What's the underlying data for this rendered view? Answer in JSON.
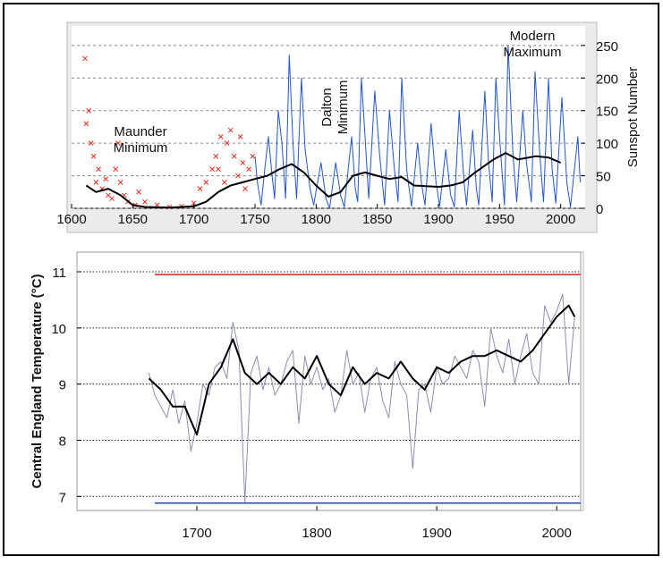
{
  "chart_data": [
    {
      "type": "line",
      "ylabel": "Sunspot Number",
      "y_axis_side": "right",
      "grid": true,
      "grid_style": "dashed",
      "background": "#ebebeb",
      "xlim": [
        1600,
        2020
      ],
      "xticks": [
        1600,
        1650,
        1700,
        1750,
        1800,
        1850,
        1900,
        1950,
        2000
      ],
      "ylim": [
        0,
        280
      ],
      "yticks": [
        0,
        50,
        100,
        150,
        200,
        250
      ],
      "annotations": [
        {
          "lines": [
            "Maunder",
            "Minimum"
          ],
          "rotated": false
        },
        {
          "lines": [
            "Dalton",
            "Minimum"
          ],
          "rotated": true
        },
        {
          "lines": [
            "Modern",
            "Maximum"
          ],
          "rotated": false
        }
      ],
      "series": [
        {
          "style": "scatter",
          "marker": "x",
          "color": "#e03020",
          "x": [
            1611,
            1612,
            1614,
            1616,
            1618,
            1620,
            1622,
            1625,
            1628,
            1630,
            1633,
            1636,
            1638,
            1640,
            1643,
            1646,
            1652,
            1655,
            1660,
            1670,
            1680,
            1690,
            1700,
            1705,
            1710,
            1715,
            1718,
            1720,
            1722,
            1725,
            1727,
            1730,
            1733,
            1736,
            1738,
            1740,
            1742,
            1745,
            1748
          ],
          "values": [
            230,
            130,
            150,
            100,
            80,
            40,
            60,
            30,
            45,
            20,
            15,
            60,
            100,
            40,
            20,
            10,
            5,
            25,
            10,
            5,
            2,
            3,
            8,
            30,
            40,
            60,
            80,
            60,
            110,
            40,
            100,
            120,
            80,
            50,
            110,
            70,
            30,
            60,
            80
          ]
        },
        {
          "style": "line",
          "color": "#2255cc",
          "width": 1,
          "x": [
            1750,
            1752,
            1755,
            1758,
            1761,
            1764,
            1766,
            1769,
            1772,
            1775,
            1778,
            1781,
            1784,
            1788,
            1791,
            1795,
            1798,
            1804,
            1808,
            1811,
            1816,
            1820,
            1823,
            1829,
            1832,
            1834,
            1837,
            1840,
            1843,
            1848,
            1852,
            1856,
            1860,
            1864,
            1867,
            1870,
            1874,
            1878,
            1883,
            1886,
            1889,
            1894,
            1898,
            1901,
            1906,
            1910,
            1913,
            1917,
            1921,
            1923,
            1928,
            1931,
            1933,
            1938,
            1941,
            1944,
            1947,
            1950,
            1954,
            1957,
            1961,
            1964,
            1969,
            1972,
            1976,
            1979,
            1983,
            1986,
            1990,
            1993,
            1996,
            2001,
            2005,
            2008,
            2014,
            2016
          ],
          "values": [
            80,
            40,
            5,
            60,
            110,
            50,
            15,
            150,
            100,
            15,
            235,
            100,
            15,
            200,
            90,
            30,
            5,
            70,
            15,
            0,
            70,
            20,
            2,
            110,
            30,
            10,
            200,
            110,
            15,
            180,
            80,
            5,
            150,
            60,
            10,
            200,
            60,
            3,
            100,
            40,
            5,
            130,
            40,
            3,
            90,
            20,
            2,
            150,
            40,
            5,
            120,
            30,
            5,
            180,
            70,
            10,
            200,
            110,
            5,
            250,
            80,
            10,
            150,
            70,
            10,
            210,
            80,
            10,
            200,
            60,
            8,
            170,
            40,
            2,
            110,
            40
          ]
        },
        {
          "style": "line",
          "color": "#000000",
          "width": 2,
          "x": [
            1612,
            1620,
            1630,
            1640,
            1650,
            1660,
            1680,
            1700,
            1710,
            1720,
            1730,
            1740,
            1750,
            1760,
            1770,
            1780,
            1790,
            1800,
            1810,
            1820,
            1830,
            1840,
            1850,
            1860,
            1870,
            1880,
            1900,
            1910,
            1920,
            1930,
            1945,
            1955,
            1965,
            1980,
            1990,
            2000
          ],
          "values": [
            35,
            25,
            30,
            20,
            5,
            2,
            1,
            3,
            10,
            25,
            35,
            40,
            45,
            50,
            60,
            68,
            55,
            35,
            18,
            25,
            50,
            55,
            50,
            45,
            48,
            35,
            33,
            35,
            40,
            55,
            75,
            85,
            75,
            80,
            78,
            70
          ]
        }
      ]
    },
    {
      "type": "line",
      "ylabel": "Central England Temperature (°C)",
      "y_axis_side": "left",
      "grid": true,
      "grid_style": "dotted",
      "background": "#ffffff",
      "xlim": [
        1600,
        2020
      ],
      "xticks": [
        1700,
        1800,
        1900,
        2000
      ],
      "ylim": [
        6.75,
        11.35
      ],
      "yticks": [
        7,
        8,
        9,
        10,
        11
      ],
      "annotations": [],
      "series": [
        {
          "style": "line",
          "color": "#8a8fb0",
          "width": 1,
          "x": [
            1660,
            1665,
            1670,
            1675,
            1680,
            1685,
            1690,
            1695,
            1700,
            1705,
            1710,
            1715,
            1720,
            1725,
            1730,
            1735,
            1740,
            1745,
            1750,
            1755,
            1760,
            1765,
            1770,
            1775,
            1780,
            1785,
            1790,
            1795,
            1800,
            1805,
            1810,
            1815,
            1820,
            1825,
            1830,
            1835,
            1840,
            1845,
            1850,
            1855,
            1860,
            1865,
            1870,
            1875,
            1880,
            1885,
            1890,
            1895,
            1900,
            1905,
            1910,
            1915,
            1920,
            1925,
            1930,
            1935,
            1940,
            1945,
            1950,
            1955,
            1960,
            1965,
            1970,
            1975,
            1980,
            1985,
            1990,
            1995,
            2000,
            2005,
            2010,
            2015
          ],
          "values": [
            9.2,
            8.8,
            8.6,
            8.4,
            8.9,
            8.3,
            8.7,
            7.8,
            8.3,
            9.0,
            8.8,
            9.3,
            9.4,
            9.1,
            10.1,
            9.6,
            6.9,
            9.2,
            9.5,
            8.9,
            9.3,
            8.8,
            9.0,
            9.4,
            9.6,
            8.3,
            9.5,
            9.0,
            9.3,
            8.9,
            9.1,
            8.5,
            8.8,
            9.6,
            9.0,
            9.2,
            8.5,
            9.1,
            9.3,
            8.7,
            8.4,
            9.4,
            9.0,
            8.8,
            7.5,
            8.9,
            9.0,
            8.5,
            9.3,
            9.0,
            9.1,
            9.5,
            9.3,
            9.1,
            9.6,
            9.4,
            8.6,
            10.0,
            9.5,
            9.2,
            9.8,
            9.0,
            9.5,
            9.9,
            9.2,
            9.0,
            10.4,
            10.1,
            10.3,
            10.6,
            9.0,
            10.2
          ]
        },
        {
          "style": "line",
          "color": "#000000",
          "width": 2,
          "x": [
            1660,
            1670,
            1680,
            1690,
            1700,
            1710,
            1720,
            1730,
            1740,
            1750,
            1760,
            1770,
            1780,
            1790,
            1800,
            1810,
            1820,
            1830,
            1840,
            1850,
            1860,
            1870,
            1880,
            1890,
            1900,
            1910,
            1920,
            1930,
            1940,
            1950,
            1960,
            1970,
            1980,
            1990,
            2000,
            2010,
            2015
          ],
          "values": [
            9.1,
            8.9,
            8.6,
            8.6,
            8.1,
            9.0,
            9.3,
            9.8,
            9.2,
            9.0,
            9.2,
            9.0,
            9.3,
            9.1,
            9.5,
            9.0,
            8.8,
            9.3,
            9.0,
            9.2,
            9.1,
            9.4,
            9.1,
            8.9,
            9.3,
            9.2,
            9.4,
            9.5,
            9.5,
            9.6,
            9.5,
            9.4,
            9.6,
            9.9,
            10.2,
            10.4,
            10.2
          ]
        },
        {
          "style": "line",
          "color": "#e02020",
          "width": 1.5,
          "x": [
            1665,
            2020
          ],
          "values": [
            10.95,
            10.95
          ]
        },
        {
          "style": "line",
          "color": "#2040d0",
          "width": 1.5,
          "x": [
            1665,
            2020
          ],
          "values": [
            6.88,
            6.88
          ]
        }
      ]
    }
  ]
}
